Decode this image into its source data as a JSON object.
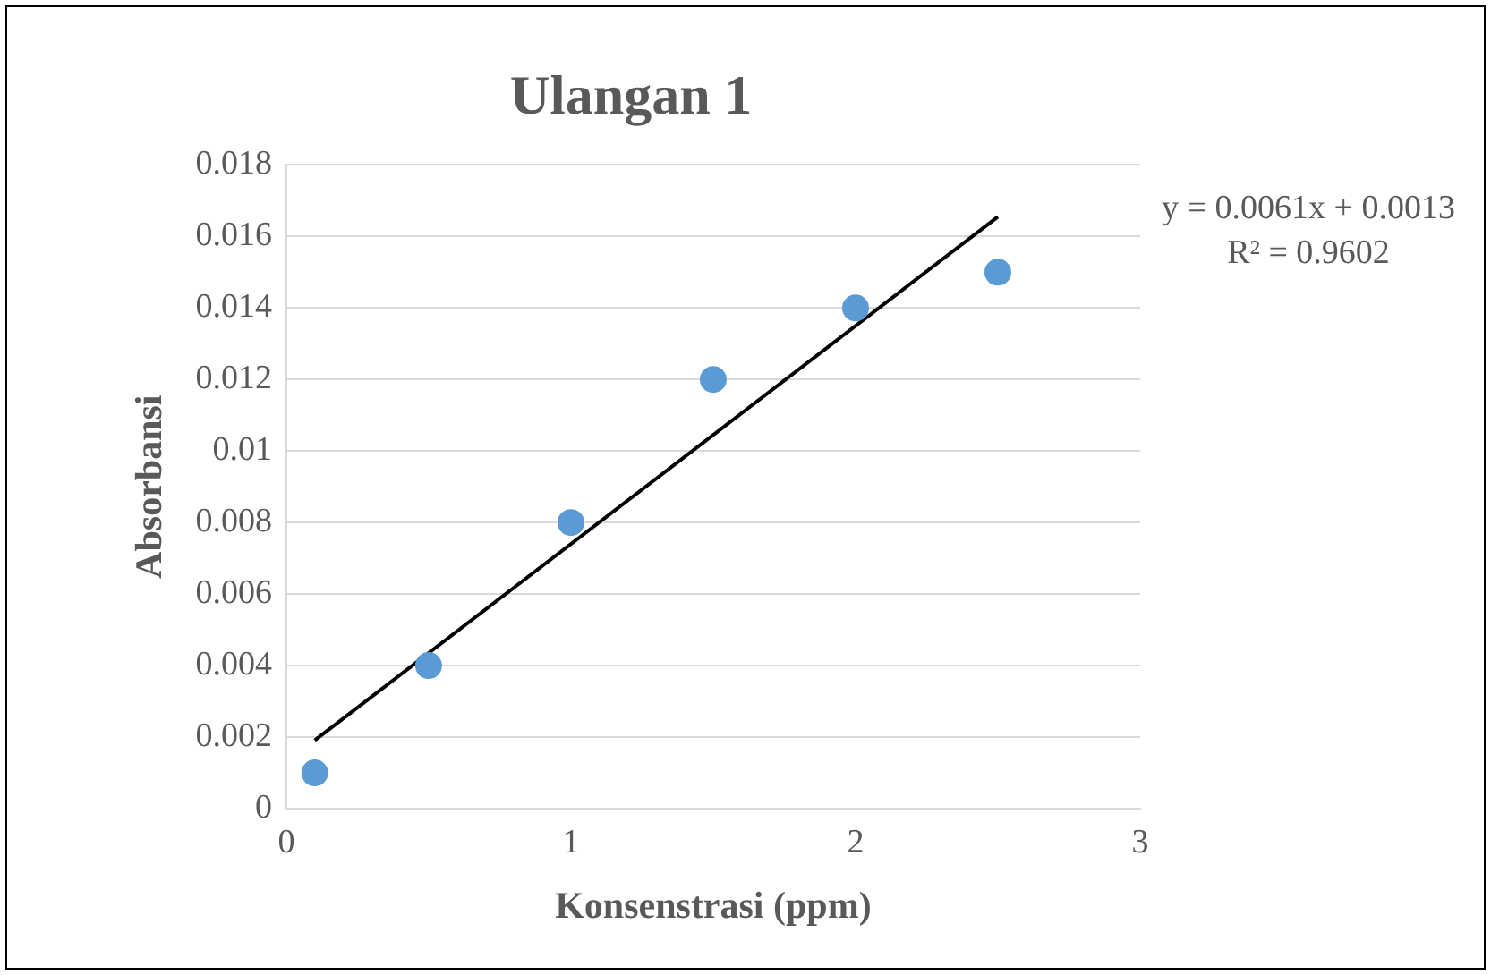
{
  "chart_data": {
    "type": "scatter",
    "title": "Ulangan 1",
    "xlabel": "Konsenstrasi (ppm)",
    "ylabel": "Absorbansi",
    "xlim": [
      0,
      3
    ],
    "xticks": [
      0,
      1,
      2,
      3
    ],
    "ylim": [
      0,
      0.018
    ],
    "yticks": [
      0,
      0.002,
      0.004,
      0.006,
      0.008,
      0.01,
      0.012,
      0.014,
      0.016,
      0.018
    ],
    "grid": "y",
    "legend": false,
    "marker": "circle",
    "series": [
      {
        "color": "#5b9bd5",
        "x": [
          0.1,
          0.5,
          1,
          1.5,
          2,
          2.5
        ],
        "values": [
          0.001,
          0.004,
          0.008,
          0.012,
          0.014,
          0.015
        ]
      },
      {
        "type": "line",
        "color": "#000000",
        "marker": "none",
        "line_style": "solid",
        "x": [
          0.1,
          2.5
        ],
        "values": [
          0.00191,
          0.01655
        ]
      }
    ],
    "annotations": [
      "y = 0.0061x + 0.0013",
      "R² = 0.9602"
    ]
  }
}
